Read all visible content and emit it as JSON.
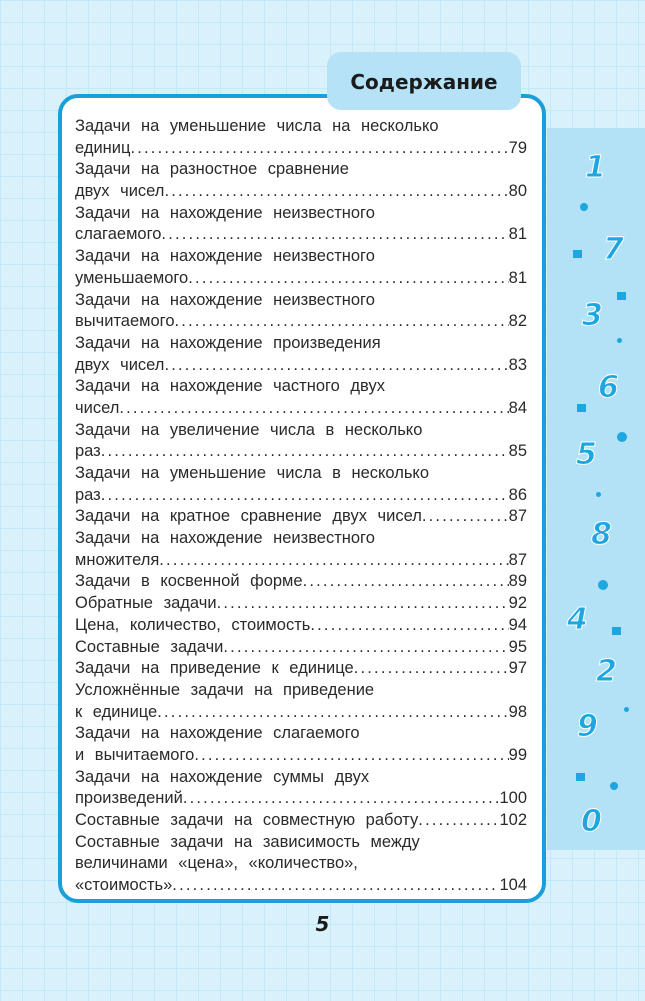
{
  "title": "Содержание",
  "page_number": "5",
  "decor_digits": [
    "1",
    "7",
    "3",
    "6",
    "5",
    "8",
    "4",
    "2",
    "9",
    "0"
  ],
  "colors": {
    "accent": "#1a9fd9",
    "tab": "#b5e2f6",
    "background": "#d9f1fb"
  },
  "entries": [
    {
      "lines": [
        "Задачи на уменьшение числа на несколько",
        "единиц"
      ],
      "page": "79"
    },
    {
      "lines": [
        "Задачи на разностное сравнение",
        "двух чисел"
      ],
      "page": "80"
    },
    {
      "lines": [
        "Задачи на нахождение неизвестного",
        "слагаемого"
      ],
      "page": "81"
    },
    {
      "lines": [
        "Задачи на нахождение неизвестного",
        "уменьшаемого"
      ],
      "page": "81"
    },
    {
      "lines": [
        "Задачи на нахождение неизвестного",
        "вычитаемого"
      ],
      "page": "82"
    },
    {
      "lines": [
        "Задачи на нахождение произведения",
        "двух чисел"
      ],
      "page": "83"
    },
    {
      "lines": [
        "Задачи на нахождение частного двух",
        "чисел"
      ],
      "page": "84"
    },
    {
      "lines": [
        "Задачи на увеличение числа в несколько",
        "раз"
      ],
      "page": "85"
    },
    {
      "lines": [
        "Задачи на уменьшение числа в несколько",
        "раз"
      ],
      "page": "86"
    },
    {
      "lines": [
        "Задачи на кратное сравнение двух чисел"
      ],
      "page": "87"
    },
    {
      "lines": [
        "Задачи на нахождение неизвестного",
        "множителя"
      ],
      "page": "87"
    },
    {
      "lines": [
        "Задачи в косвенной форме"
      ],
      "page": "89"
    },
    {
      "lines": [
        "Обратные задачи"
      ],
      "page": "92"
    },
    {
      "lines": [
        "Цена, количество, стоимость"
      ],
      "page": "94"
    },
    {
      "lines": [
        "Составные задачи"
      ],
      "page": "95"
    },
    {
      "lines": [
        "Задачи на приведение к единице"
      ],
      "page": "97"
    },
    {
      "lines": [
        "Усложнённые задачи на приведение",
        "к единице"
      ],
      "page": "98"
    },
    {
      "lines": [
        "Задачи на нахождение слагаемого",
        "и вычитаемого"
      ],
      "page": "99"
    },
    {
      "lines": [
        "Задачи на нахождение суммы двух",
        "произведений"
      ],
      "page": "100"
    },
    {
      "lines": [
        "Составные задачи на совместную работу"
      ],
      "page": "102"
    },
    {
      "lines": [
        "Составные задачи на зависимость между",
        "величинами «цена», «количество»,",
        "«стоимость»"
      ],
      "page": "104"
    }
  ]
}
